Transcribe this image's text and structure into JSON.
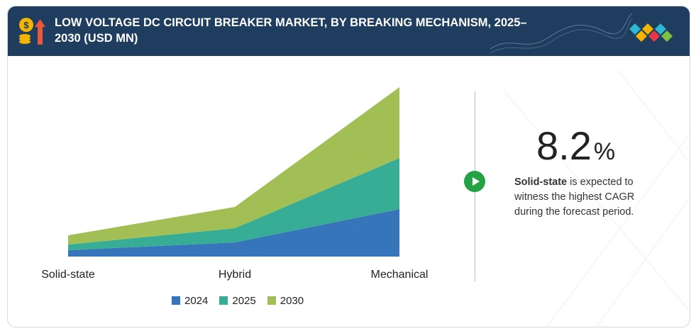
{
  "header": {
    "title": "LOW VOLTAGE DC CIRCUIT BREAKER MARKET, BY BREAKING MECHANISM, 2025–2030 (USD MN)",
    "icon": "dollar-coins-growth-icon",
    "logo": "diamond-logo-icon"
  },
  "colors": {
    "header_bg": "#1e3d5f",
    "series_2024": "#3675b9",
    "series_2025": "#38ad96",
    "series_2030": "#a2bf55",
    "play_button": "#25a244"
  },
  "chart_data": {
    "type": "area",
    "stacked": true,
    "categories": [
      "Solid-state",
      "Hybrid",
      "Mechanical"
    ],
    "series": [
      {
        "name": "2024",
        "values": [
          9,
          20,
          67
        ]
      },
      {
        "name": "2025",
        "values": [
          8,
          20,
          72
        ]
      },
      {
        "name": "2030",
        "values": [
          13,
          30,
          100
        ]
      }
    ],
    "ylim": [
      0,
      240
    ],
    "grid": false,
    "legend": "bottom"
  },
  "highlight": {
    "value": "8.2",
    "unit": "%",
    "segment": "Solid-state",
    "text": " is expected to witness the highest CAGR during the forecast period."
  }
}
